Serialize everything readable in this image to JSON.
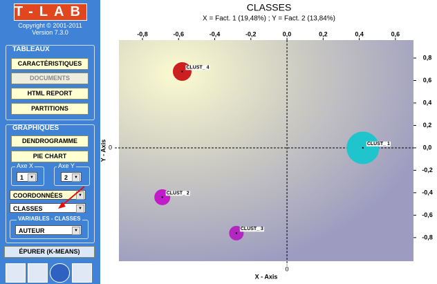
{
  "sidebar": {
    "logo": "T-LAB",
    "copyright": "Copyright © 2001-2011",
    "version": "Version 7.3.0",
    "tableaux": {
      "title": "TABLEAUX",
      "buttons": [
        "CARACTÉRISTIQUES",
        "DOCUMENTS",
        "HTML REPORT",
        "PARTITIONS"
      ]
    },
    "graphiques": {
      "title": "GRAPHIQUES",
      "buttons": [
        "DENDROGRAMME",
        "PIE CHART"
      ],
      "axe_x": {
        "label": "Axe X",
        "value": "1"
      },
      "axe_y": {
        "label": "Axe Y",
        "value": "2"
      },
      "select_1": "COORDONNÉES",
      "select_2": "CLASSES",
      "variables": {
        "label": "VARIABLES - CLASSES",
        "value": "AUTEUR"
      }
    },
    "epurer": "ÉPURER (K-MEANS)"
  },
  "chart_data": {
    "type": "scatter",
    "title": "CLASSES",
    "subtitle": "X = Fact. 1 (19,48%) ; Y = Fact. 2 (13,84%)",
    "x_label": "X - Axis",
    "y_label": "Y - Axis",
    "origin_label": "0",
    "labels": [
      "CLUST_ 1",
      "CLUST_ 2",
      "CLUST_ 3",
      "CLUST_ 4"
    ],
    "x": [
      0.42,
      -0.69,
      -0.28,
      -0.58
    ],
    "values": [
      0.0,
      -0.44,
      -0.76,
      0.68
    ],
    "sizes": [
      23,
      11,
      10,
      13
    ],
    "colors": [
      "#1fc4cc",
      "#c01cc8",
      "#b426c0",
      "#cc2020"
    ],
    "xlim": [
      -0.93,
      0.7
    ],
    "ylim": [
      -1.01,
      0.96
    ],
    "xticks": [
      {
        "value": -0.8,
        "label": "-0,8"
      },
      {
        "value": -0.6,
        "label": "-0,6"
      },
      {
        "value": -0.4,
        "label": "-0,4"
      },
      {
        "value": -0.2,
        "label": "-0,2"
      },
      {
        "value": 0,
        "label": "0,0"
      },
      {
        "value": 0.2,
        "label": "0,2"
      },
      {
        "value": 0.4,
        "label": "0,4"
      },
      {
        "value": 0.6,
        "label": "0,6"
      }
    ],
    "yticks": [
      {
        "value": 0.8,
        "label": "0,8"
      },
      {
        "value": 0.6,
        "label": "0,6"
      },
      {
        "value": 0.4,
        "label": "0,4"
      },
      {
        "value": 0.2,
        "label": "0,2"
      },
      {
        "value": 0,
        "label": "0,0"
      },
      {
        "value": -0.2,
        "label": "-0,2"
      },
      {
        "value": -0.4,
        "label": "-0,4"
      },
      {
        "value": -0.6,
        "label": "-0,6"
      },
      {
        "value": -0.8,
        "label": "-0,8"
      }
    ]
  }
}
